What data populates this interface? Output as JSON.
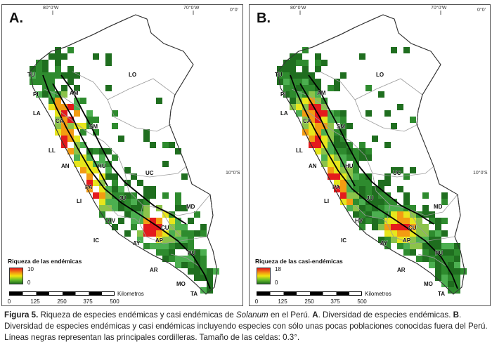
{
  "panels": [
    {
      "id": "A",
      "letter": "A.",
      "legend_title": "Riqueza de las endémicas",
      "legend_max": "10",
      "legend_min": "0",
      "palette": [
        "#1f6e1f",
        "#2e8b2e",
        "#4caf50",
        "#8bc34a",
        "#e7e61c",
        "#f39c12",
        "#e41a1c"
      ],
      "cells_seed": 11,
      "density": 1.0
    },
    {
      "id": "B",
      "letter": "B.",
      "legend_title": "Riqueza de las casi-endémicas",
      "legend_max": "18",
      "legend_min": "0",
      "palette": [
        "#1f6e1f",
        "#2e8b2e",
        "#4caf50",
        "#8bc34a",
        "#e7e61c",
        "#f39c12",
        "#e41a1c"
      ],
      "cells_seed": 29,
      "density": 1.35
    }
  ],
  "coords": {
    "lon_80": "80°0'W",
    "lon_70": "70°0'W",
    "lat_0": "0°0'",
    "lat_10": "10°0'S"
  },
  "region_labels": [
    "TU",
    "PI",
    "AM",
    "LA",
    "CA",
    "SM",
    "LL",
    "AN",
    "HU",
    "UC",
    "LO",
    "JU",
    "MD",
    "LI",
    "CU",
    "IC",
    "AY",
    "AP",
    "PU",
    "AR",
    "MO",
    "TA",
    "HV",
    "PA"
  ],
  "scale": {
    "unit": "Kilometros",
    "ticks": [
      "0",
      "125",
      "250",
      "375",
      "500"
    ]
  },
  "caption": {
    "fig_label": "Figura 5.",
    "part1": " Riqueza de especies endémicas y casi endémicas de ",
    "genus": "Solanum",
    "part2": " en el Perú. ",
    "a_label": "A",
    "part3": ". Diversidad de especies endémicas. ",
    "b_label": "B",
    "part4": ". Diversidad de especies endémicas y casi endémicas incluyendo especies con sólo unas pocas poblaciones conocidas fuera del Perú. Líneas negras representan las principales cordilleras. Tamaño de las celdas: 0.3°."
  }
}
